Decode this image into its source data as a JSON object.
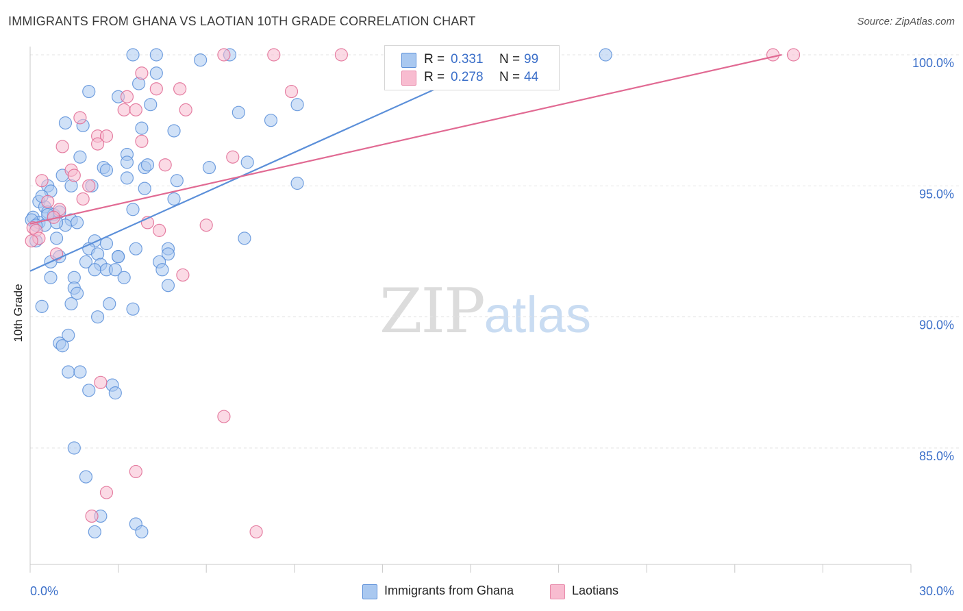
{
  "title": "IMMIGRANTS FROM GHANA VS LAOTIAN 10TH GRADE CORRELATION CHART",
  "source": "Source: ZipAtlas.com",
  "watermark": {
    "part1": "ZIP",
    "part2": "atlas"
  },
  "legend_top": {
    "rows": [
      {
        "r_label": "R =",
        "r_value": "0.331",
        "n_label": "N =",
        "n_value": "99",
        "color": "#a9c8f0",
        "border": "#5b8fd9"
      },
      {
        "r_label": "R =",
        "r_value": "0.278",
        "n_label": "N =",
        "n_value": "44",
        "color": "#f8bcd0",
        "border": "#e88aaa"
      }
    ]
  },
  "legend_bottom": {
    "items": [
      {
        "label": "Immigrants from Ghana",
        "color": "#a9c8f0",
        "border": "#5b8fd9"
      },
      {
        "label": "Laotians",
        "color": "#f8bcd0",
        "border": "#e88aaa"
      }
    ]
  },
  "chart_data": {
    "type": "scatter",
    "title": "IMMIGRANTS FROM GHANA VS LAOTIAN 10TH GRADE CORRELATION CHART",
    "xlabel": "",
    "ylabel": "10th Grade",
    "xlim": [
      0,
      30
    ],
    "ylim": [
      80.5,
      100.2
    ],
    "x_ticks": [
      "0.0%",
      "30.0%"
    ],
    "y_ticks": [
      {
        "value": 100,
        "label": "100.0%"
      },
      {
        "value": 95,
        "label": "95.0%"
      },
      {
        "value": 90,
        "label": "90.0%"
      },
      {
        "value": 85,
        "label": "85.0%"
      }
    ],
    "grid": true,
    "legend_position": "top-center",
    "series": [
      {
        "name": "Immigrants from Ghana",
        "color": "#5b8fd9",
        "fill": "#a9c8f0",
        "r": 0.331,
        "n": 99,
        "trend": {
          "x": [
            0,
            16.4
          ],
          "y": [
            91.75,
            100.0
          ]
        },
        "points": [
          [
            3.5,
            100
          ],
          [
            4.3,
            100
          ],
          [
            6.8,
            100
          ],
          [
            19.6,
            100
          ],
          [
            5.8,
            99.8
          ],
          [
            4.3,
            99.3
          ],
          [
            2.0,
            98.6
          ],
          [
            3.0,
            98.4
          ],
          [
            3.7,
            98.9
          ],
          [
            4.1,
            98.1
          ],
          [
            9.1,
            98.1
          ],
          [
            7.1,
            97.8
          ],
          [
            8.2,
            97.5
          ],
          [
            1.2,
            97.4
          ],
          [
            1.8,
            97.3
          ],
          [
            3.8,
            97.2
          ],
          [
            4.9,
            97.1
          ],
          [
            1.7,
            96.1
          ],
          [
            3.3,
            96.2
          ],
          [
            3.3,
            95.9
          ],
          [
            2.5,
            95.7
          ],
          [
            2.6,
            95.6
          ],
          [
            3.9,
            95.7
          ],
          [
            4.0,
            95.8
          ],
          [
            6.1,
            95.7
          ],
          [
            7.4,
            95.9
          ],
          [
            1.1,
            95.4
          ],
          [
            3.3,
            95.3
          ],
          [
            5.0,
            95.2
          ],
          [
            9.1,
            95.1
          ],
          [
            0.6,
            95.0
          ],
          [
            1.4,
            95.0
          ],
          [
            2.1,
            95.0
          ],
          [
            3.9,
            94.9
          ],
          [
            0.7,
            94.8
          ],
          [
            0.3,
            94.4
          ],
          [
            4.9,
            94.5
          ],
          [
            0.5,
            94.2
          ],
          [
            0.6,
            94.0
          ],
          [
            3.5,
            94.1
          ],
          [
            0.1,
            93.8
          ],
          [
            0.8,
            93.9
          ],
          [
            1.4,
            93.7
          ],
          [
            0.3,
            93.6
          ],
          [
            0.5,
            93.5
          ],
          [
            1.2,
            93.5
          ],
          [
            0.9,
            93.6
          ],
          [
            0.2,
            92.9
          ],
          [
            0.9,
            93.0
          ],
          [
            2.2,
            92.9
          ],
          [
            7.3,
            93.0
          ],
          [
            2.0,
            92.6
          ],
          [
            3.6,
            92.6
          ],
          [
            4.7,
            92.6
          ],
          [
            2.3,
            92.4
          ],
          [
            3.0,
            92.3
          ],
          [
            1.0,
            92.3
          ],
          [
            4.7,
            92.4
          ],
          [
            0.7,
            92.1
          ],
          [
            1.9,
            92.1
          ],
          [
            2.4,
            92.0
          ],
          [
            3.0,
            92.3
          ],
          [
            4.4,
            92.1
          ],
          [
            2.2,
            91.8
          ],
          [
            2.6,
            91.8
          ],
          [
            2.9,
            91.8
          ],
          [
            4.5,
            91.8
          ],
          [
            0.7,
            91.5
          ],
          [
            1.5,
            91.5
          ],
          [
            3.2,
            91.5
          ],
          [
            1.5,
            91.1
          ],
          [
            1.6,
            90.9
          ],
          [
            4.7,
            91.2
          ],
          [
            0.4,
            90.4
          ],
          [
            1.4,
            90.5
          ],
          [
            2.7,
            90.5
          ],
          [
            3.5,
            90.3
          ],
          [
            2.3,
            90.0
          ],
          [
            1.3,
            89.3
          ],
          [
            1.0,
            89.0
          ],
          [
            1.1,
            88.9
          ],
          [
            1.3,
            87.9
          ],
          [
            1.7,
            87.9
          ],
          [
            2.8,
            87.4
          ],
          [
            2.0,
            87.2
          ],
          [
            2.9,
            87.1
          ],
          [
            1.5,
            85.0
          ],
          [
            1.9,
            83.9
          ],
          [
            2.4,
            82.4
          ],
          [
            3.6,
            82.1
          ],
          [
            2.2,
            81.8
          ],
          [
            3.8,
            81.8
          ],
          [
            0.05,
            93.7
          ],
          [
            0.2,
            93.5
          ],
          [
            0.4,
            94.6
          ],
          [
            0.6,
            93.9
          ],
          [
            1.0,
            94.0
          ],
          [
            1.6,
            93.6
          ],
          [
            2.6,
            92.8
          ]
        ]
      },
      {
        "name": "Laotians",
        "color": "#e16a93",
        "fill": "#f8bcd0",
        "r": 0.278,
        "n": 44,
        "trend": {
          "x": [
            0,
            25.6
          ],
          "y": [
            93.55,
            100.0
          ]
        },
        "points": [
          [
            6.6,
            100
          ],
          [
            8.3,
            100
          ],
          [
            10.6,
            100
          ],
          [
            25.3,
            100
          ],
          [
            26.0,
            100
          ],
          [
            3.8,
            99.3
          ],
          [
            4.3,
            98.7
          ],
          [
            5.1,
            98.7
          ],
          [
            8.9,
            98.6
          ],
          [
            3.3,
            98.4
          ],
          [
            3.2,
            97.9
          ],
          [
            3.6,
            97.9
          ],
          [
            5.3,
            97.9
          ],
          [
            1.7,
            97.6
          ],
          [
            2.3,
            96.9
          ],
          [
            2.6,
            96.9
          ],
          [
            3.8,
            96.7
          ],
          [
            1.1,
            96.5
          ],
          [
            2.3,
            96.6
          ],
          [
            6.9,
            96.1
          ],
          [
            1.4,
            95.6
          ],
          [
            4.6,
            95.8
          ],
          [
            1.5,
            95.4
          ],
          [
            0.4,
            95.2
          ],
          [
            2.0,
            95.0
          ],
          [
            0.6,
            94.4
          ],
          [
            1.8,
            94.5
          ],
          [
            1.0,
            94.1
          ],
          [
            0.8,
            93.8
          ],
          [
            4.0,
            93.6
          ],
          [
            6.0,
            93.5
          ],
          [
            4.4,
            93.3
          ],
          [
            0.1,
            93.4
          ],
          [
            0.2,
            93.3
          ],
          [
            0.3,
            93.0
          ],
          [
            0.05,
            92.9
          ],
          [
            0.9,
            92.4
          ],
          [
            5.2,
            91.6
          ],
          [
            2.4,
            87.5
          ],
          [
            6.6,
            86.2
          ],
          [
            3.6,
            84.1
          ],
          [
            2.6,
            83.3
          ],
          [
            2.1,
            82.4
          ],
          [
            7.7,
            81.8
          ]
        ]
      }
    ]
  }
}
